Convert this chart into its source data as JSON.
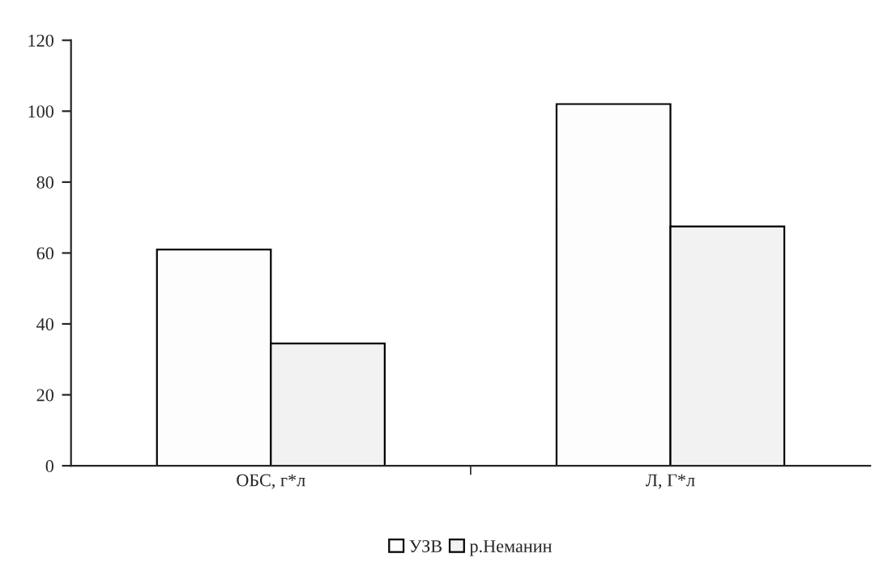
{
  "chart_data": {
    "type": "bar",
    "categories": [
      "ОБС, г*л",
      "Л, Г*л"
    ],
    "series": [
      {
        "name": "УЗВ",
        "color": "#fdfdfd",
        "values": [
          61,
          102
        ]
      },
      {
        "name": "р.Неманин",
        "color": "#f2f2f2",
        "values": [
          34.5,
          67.5
        ]
      }
    ],
    "ylim": [
      0,
      120
    ],
    "yticks": [
      0,
      20,
      40,
      60,
      80,
      100,
      120
    ],
    "grid": false,
    "legend": "bottom"
  }
}
